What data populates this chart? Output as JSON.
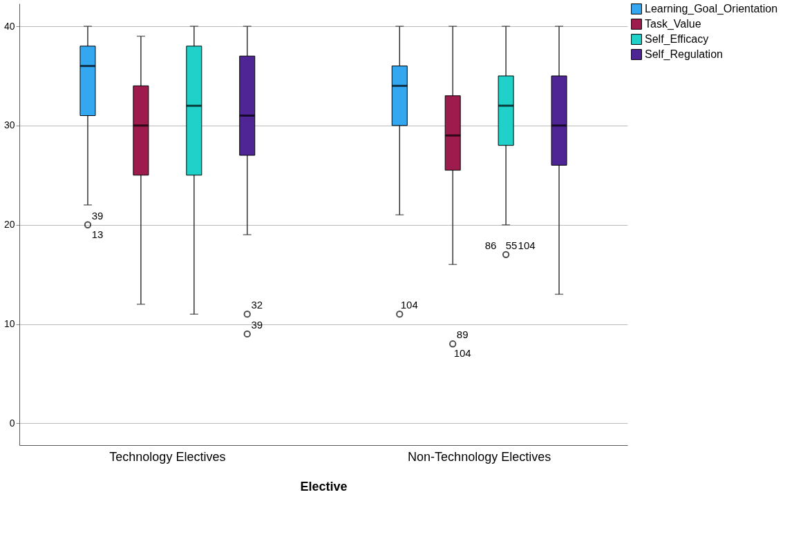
{
  "chart_data": {
    "type": "box",
    "xlabel": "Elective",
    "categories": [
      "Technology Electives",
      "Non-Technology Electives"
    ],
    "series": [
      {
        "name": "Learning_Goal_Orientation",
        "color": "#33a8f0",
        "boxes": [
          {
            "low": 22,
            "q1": 31,
            "median": 36,
            "q3": 38,
            "high": 40,
            "outliers": [
              20
            ]
          },
          {
            "low": 21,
            "q1": 30,
            "median": 34,
            "q3": 36,
            "high": 40,
            "outliers": [
              11
            ]
          }
        ]
      },
      {
        "name": "Task_Value",
        "color": "#9e1b4e",
        "boxes": [
          {
            "low": 12,
            "q1": 25,
            "median": 30,
            "q3": 34,
            "high": 39
          },
          {
            "low": 16,
            "q1": 25.5,
            "median": 29,
            "q3": 33,
            "high": 40,
            "outliers": [
              8
            ]
          }
        ]
      },
      {
        "name": "Self_Efficacy",
        "color": "#1fd1c9",
        "boxes": [
          {
            "low": 11,
            "q1": 25,
            "median": 32,
            "q3": 38,
            "high": 40
          },
          {
            "low": 20,
            "q1": 28,
            "median": 32,
            "q3": 35,
            "high": 40,
            "outliers": [
              17
            ]
          }
        ]
      },
      {
        "name": "Self_Regulation",
        "color": "#4f2596",
        "boxes": [
          {
            "low": 19,
            "q1": 27,
            "median": 31,
            "q3": 37,
            "high": 40,
            "outliers": [
              11,
              9
            ]
          },
          {
            "low": 13,
            "q1": 26,
            "median": 30,
            "q3": 35,
            "high": 40
          }
        ]
      }
    ],
    "ylim": [
      -2.2,
      42.3
    ],
    "yticks": [
      0,
      10,
      20,
      30,
      40
    ],
    "grid": "y",
    "legend": "top right",
    "annotations": [
      "39",
      "13",
      "32",
      "39",
      "104",
      "89",
      "104",
      "86",
      "55",
      "104"
    ]
  }
}
